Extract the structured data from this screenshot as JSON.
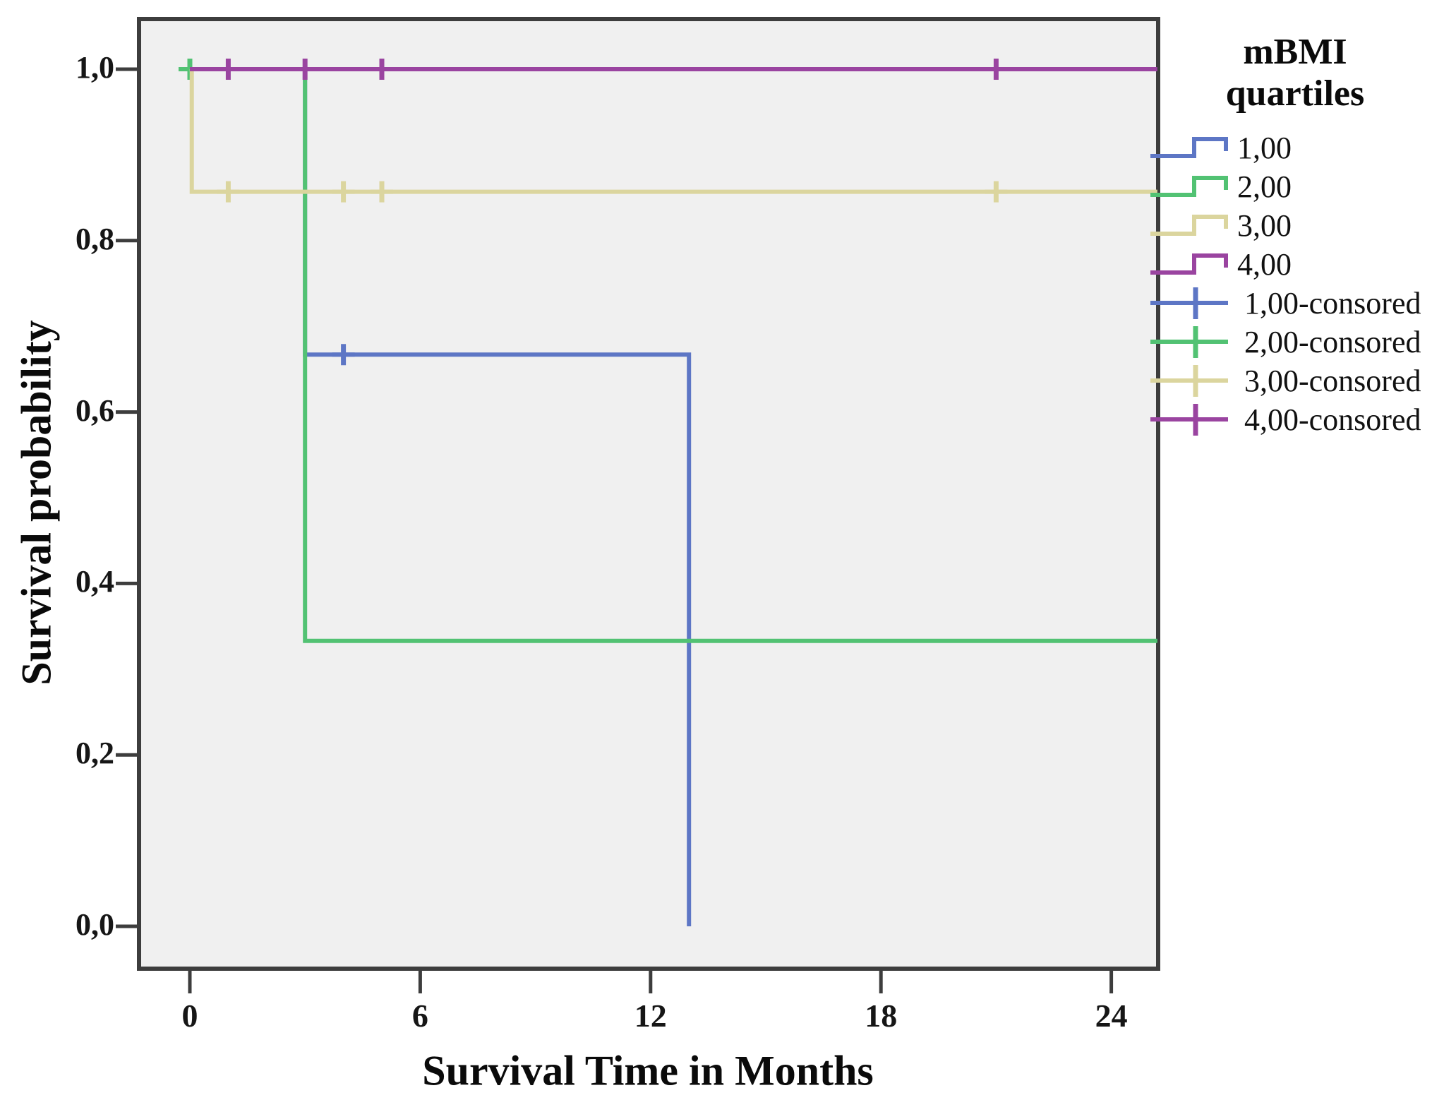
{
  "chart_data": {
    "type": "line",
    "subtype": "kaplan-meier-step-survival",
    "title": "",
    "xlabel": "Survival Time in Months",
    "ylabel": "Survival probability",
    "xlim": [
      -1.3,
      25.2
    ],
    "ylim": [
      -0.05,
      1.06
    ],
    "grid": false,
    "plot_bg": "#f0f0f0",
    "frame_color": "#3d3d3d",
    "tick_color": "#3d3d3d",
    "x_ticks": [
      0,
      6,
      12,
      18,
      24
    ],
    "x_tick_labels": [
      "0",
      "6",
      "12",
      "18",
      "24"
    ],
    "y_ticks": [
      0.0,
      0.2,
      0.4,
      0.6,
      0.8,
      1.0
    ],
    "y_tick_labels": [
      "0,0",
      "0,2",
      "0,4",
      "0,6",
      "0,8",
      "1,0"
    ],
    "legend_position": "right",
    "series": [
      {
        "name": "1,00",
        "color": "#5d76c5",
        "points": [
          [
            0,
            1.0
          ],
          [
            3,
            1.0
          ],
          [
            3,
            0.667
          ],
          [
            13,
            0.667
          ],
          [
            13,
            0.0
          ]
        ],
        "censored": [
          [
            4,
            0.667
          ]
        ]
      },
      {
        "name": "2,00",
        "color": "#52c273",
        "points": [
          [
            0,
            1.0
          ],
          [
            3,
            1.0
          ],
          [
            3,
            0.333
          ],
          [
            25.2,
            0.333
          ]
        ],
        "censored": [
          [
            0,
            1.0
          ]
        ]
      },
      {
        "name": "3,00",
        "color": "#dbd59e",
        "points": [
          [
            0,
            1.0
          ],
          [
            0.05,
            1.0
          ],
          [
            0.05,
            0.857
          ],
          [
            25.2,
            0.857
          ]
        ],
        "censored": [
          [
            1,
            0.857
          ],
          [
            4,
            0.857
          ],
          [
            5,
            0.857
          ],
          [
            21,
            0.857
          ]
        ]
      },
      {
        "name": "4,00",
        "color": "#9a44a0",
        "points": [
          [
            0,
            1.0
          ],
          [
            25.2,
            1.0
          ]
        ],
        "censored": [
          [
            1,
            1.0
          ],
          [
            3,
            1.0
          ],
          [
            5,
            1.0
          ],
          [
            21,
            1.0
          ]
        ]
      }
    ],
    "legend": {
      "title_lines": [
        "mBMI",
        "quartiles"
      ],
      "entries": [
        {
          "label": "1,00",
          "color": "#5d76c5",
          "glyph": "step"
        },
        {
          "label": "2,00",
          "color": "#52c273",
          "glyph": "step"
        },
        {
          "label": "3,00",
          "color": "#dbd59e",
          "glyph": "step"
        },
        {
          "label": "4,00",
          "color": "#9a44a0",
          "glyph": "step"
        },
        {
          "label": "1,00-consored",
          "color": "#5d76c5",
          "glyph": "censor"
        },
        {
          "label": "2,00-consored",
          "color": "#52c273",
          "glyph": "censor"
        },
        {
          "label": "3,00-consored",
          "color": "#dbd59e",
          "glyph": "censor"
        },
        {
          "label": "4,00-consored",
          "color": "#9a44a0",
          "glyph": "censor"
        }
      ]
    }
  }
}
